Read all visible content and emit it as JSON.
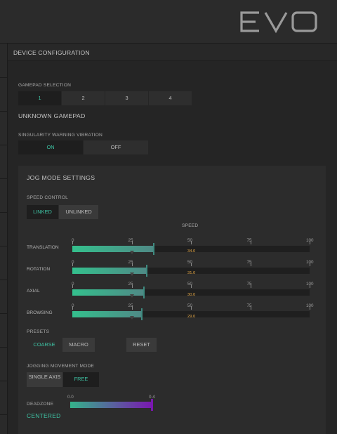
{
  "app": {
    "logo_text": "EVO"
  },
  "header": {
    "title": "DEVICE CONFIGURATION"
  },
  "gamepad": {
    "label": "GAMEPAD SELECTION",
    "options": [
      "1",
      "2",
      "3",
      "4"
    ],
    "selected": "1",
    "name": "UNKNOWN GAMEPAD"
  },
  "vibration": {
    "label": "SINGULARITY WARNING VIBRATION",
    "on": "ON",
    "off": "OFF",
    "selected": "ON"
  },
  "jog": {
    "title": "JOG MODE SETTINGS",
    "speed_control_label": "SPEED CONTROL",
    "linked": "LINKED",
    "unlinked": "UNLINKED",
    "speed_label": "SPEED",
    "ticks": [
      "0",
      "25",
      "50",
      "75",
      "100"
    ],
    "sliders": [
      {
        "label": "TRANSLATION",
        "value": 34.0,
        "value_text": "34.0"
      },
      {
        "label": "ROTATION",
        "value": 31.0,
        "value_text": "31.0"
      },
      {
        "label": "AXIAL",
        "value": 30.0,
        "value_text": "30.0"
      },
      {
        "label": "BROWSING",
        "value": 29.0,
        "value_text": "29.0"
      }
    ],
    "presets_label": "PRESETS",
    "coarse": "COARSE",
    "macro": "MACRO",
    "reset": "RESET",
    "movement_label": "JOGGING MOVEMENT MODE",
    "single_axis": "SINGLE AXIS",
    "free": "FREE",
    "deadzone_label": "DEADZONE",
    "deadzone_min": "0.0",
    "deadzone_max": "0.4",
    "deadzone_value": 0.4,
    "deadzone_mode": "CENTERED"
  },
  "colors": {
    "accent": "#3ec2a3",
    "value": "#e3a646",
    "deadzone_end": "#7a17b0"
  }
}
